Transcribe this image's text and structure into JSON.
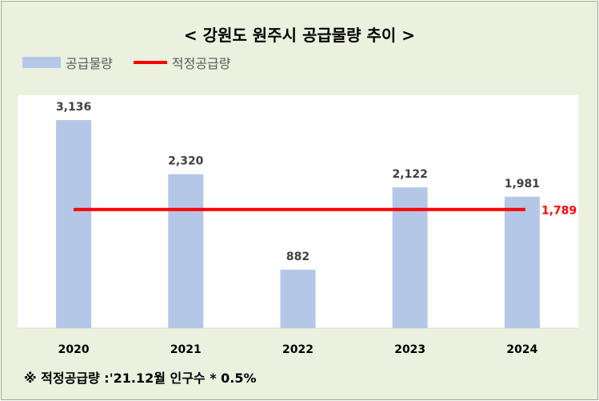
{
  "chart_data": {
    "type": "bar",
    "title": "< 강원도 원주시 공급물량 추이 >",
    "categories": [
      "2020",
      "2021",
      "2022",
      "2023",
      "2024"
    ],
    "series": [
      {
        "name": "공급물량",
        "values": [
          3136,
          2320,
          882,
          2122,
          1981
        ],
        "color": "#b4c7e7"
      }
    ],
    "reference_line": {
      "name": "적정공급량",
      "value": 1789,
      "label": "1,789",
      "color": "#ff0000"
    },
    "value_labels": [
      "3,136",
      "2,320",
      "882",
      "2,122",
      "1,981"
    ],
    "ylim": [
      0,
      3500
    ],
    "grid": false,
    "legend_position": "top-left",
    "xlabel": "",
    "ylabel": ""
  },
  "legend": {
    "bar_label": "공급물량",
    "line_label": "적정공급량"
  },
  "note": "※ 적정공급량 :'21.12월 인구수 * 0.5%"
}
